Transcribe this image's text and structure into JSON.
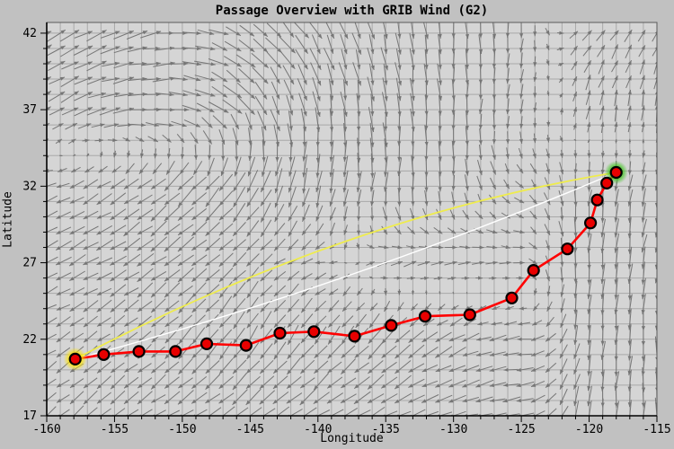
{
  "chart_data": {
    "type": "map_route_with_wind_quiver",
    "title": "Passage Overview with GRIB Wind (G2)",
    "xlabel": "Longitude",
    "ylabel": "Latitude",
    "xlim": [
      -160,
      -115
    ],
    "ylim": [
      17,
      42.7
    ],
    "grid_step_deg": 1,
    "minor_tick_step_deg": 1,
    "x_major_ticks": [
      -160,
      -155,
      -150,
      -145,
      -140,
      -135,
      -130,
      -125,
      -120,
      -115
    ],
    "x_tick_labels": [
      "-160",
      "-155",
      "-150",
      "-145",
      "-140",
      "-135",
      "-130",
      "-125",
      "-120",
      "-115"
    ],
    "y_major_ticks": [
      42,
      37,
      32,
      27,
      22,
      17
    ],
    "y_tick_labels": [
      "42",
      "37",
      "32",
      "27",
      "22",
      "17"
    ],
    "route": {
      "name": "passage-route",
      "points": [
        [
          -157.9,
          20.7
        ],
        [
          -155.8,
          21.0
        ],
        [
          -153.2,
          21.2
        ],
        [
          -150.5,
          21.2
        ],
        [
          -148.2,
          21.7
        ],
        [
          -145.3,
          21.6
        ],
        [
          -142.8,
          22.4
        ],
        [
          -140.3,
          22.5
        ],
        [
          -137.3,
          22.2
        ],
        [
          -134.6,
          22.9
        ],
        [
          -132.1,
          23.5
        ],
        [
          -128.8,
          23.6
        ],
        [
          -125.7,
          24.7
        ],
        [
          -124.1,
          26.5
        ],
        [
          -121.6,
          27.9
        ],
        [
          -119.9,
          29.6
        ],
        [
          -119.4,
          31.1
        ],
        [
          -118.7,
          32.2
        ],
        [
          -118.0,
          32.9
        ]
      ],
      "start": [
        -157.9,
        20.7
      ],
      "destination": [
        -118.0,
        32.9
      ]
    },
    "great_circle_line": {
      "from": [
        -157.9,
        20.7
      ],
      "to": [
        -118.0,
        32.9
      ],
      "mid_offset_lat": 1.6
    },
    "rhumb_line": {
      "from": [
        -157.9,
        20.7
      ],
      "to": [
        -118.0,
        32.9
      ],
      "mid_offset_lat": -0.7
    },
    "wind_grid": {
      "lons": [
        -160,
        -155,
        -150,
        -145,
        -140,
        -135,
        -130,
        -125,
        -120,
        -115
      ],
      "lats": [
        42,
        37,
        32,
        27,
        22,
        17
      ],
      "angles_deg": [
        [
          30,
          20,
          5,
          -30,
          -60,
          -75,
          -85,
          -95,
          50,
          60
        ],
        [
          35,
          15,
          -5,
          -50,
          -80,
          -85,
          -90,
          -100,
          80,
          85
        ],
        [
          -160,
          -145,
          -135,
          -120,
          -100,
          -95,
          -90,
          -40,
          -95,
          -100
        ],
        [
          -155,
          -150,
          -142,
          -138,
          -170,
          20,
          15,
          0,
          -95,
          -100
        ],
        [
          -150,
          -142,
          -132,
          -122,
          -125,
          -135,
          -155,
          -175,
          -95,
          -92
        ],
        [
          -140,
          -143,
          -147,
          -142,
          -147,
          -152,
          -162,
          -172,
          -95,
          -92
        ]
      ],
      "speeds": [
        [
          0.7,
          0.7,
          0.65,
          0.7,
          0.75,
          0.75,
          0.65,
          0.5,
          0.45,
          0.4
        ],
        [
          0.6,
          0.7,
          0.75,
          0.8,
          0.85,
          0.8,
          0.65,
          0.45,
          0.5,
          0.55
        ],
        [
          0.45,
          0.6,
          0.75,
          0.8,
          0.85,
          0.75,
          0.55,
          0.3,
          0.6,
          0.6
        ],
        [
          0.55,
          0.65,
          0.7,
          0.55,
          0.3,
          0.35,
          0.4,
          0.3,
          0.75,
          0.75
        ],
        [
          0.5,
          0.55,
          0.65,
          0.7,
          0.7,
          0.7,
          0.6,
          0.5,
          0.7,
          0.8
        ],
        [
          0.55,
          0.6,
          0.65,
          0.7,
          0.7,
          0.65,
          0.6,
          0.55,
          0.8,
          0.8
        ]
      ],
      "arrow_spacing_deg": 1
    },
    "colors": {
      "outer_bg": "#c1c1c1",
      "plot_bg": "#d5d5d5",
      "grid": "#a9a9a9",
      "frame": "#5a5a5a",
      "axis": "#000000",
      "arrows": "#767676",
      "route": "#ff0000",
      "marker_fill": "#e80000",
      "marker_edge": "#000000",
      "great_circle": "#efec4d",
      "rhumb": "#ffffff",
      "start_glow": "#ffe400",
      "end_glow": "#3fc41f",
      "text": "#000000"
    }
  }
}
